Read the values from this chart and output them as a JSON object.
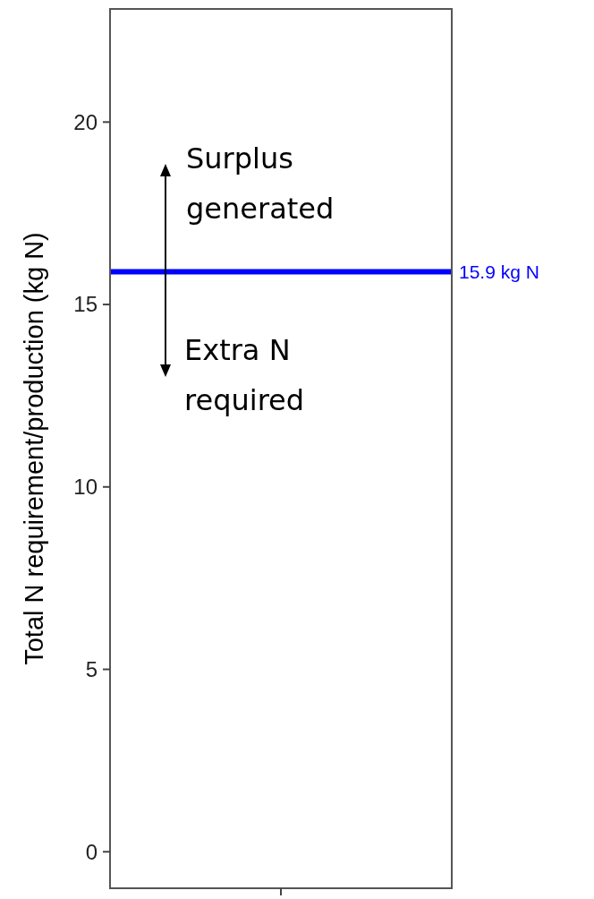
{
  "chart_data": {
    "type": "line",
    "ylabel": "Total N requirement/production (kg N)",
    "categories": [
      null
    ],
    "values": [
      null
    ],
    "ylim": [
      -1,
      23.1
    ],
    "yticks": [
      0,
      5,
      10,
      15,
      20
    ],
    "ref_lines": [
      {
        "axis": "y",
        "value": 15.9,
        "label": "15.9 kg N",
        "color": "#0000ff"
      }
    ],
    "annotations": [
      "Surplus generated",
      "Extra N required"
    ]
  }
}
